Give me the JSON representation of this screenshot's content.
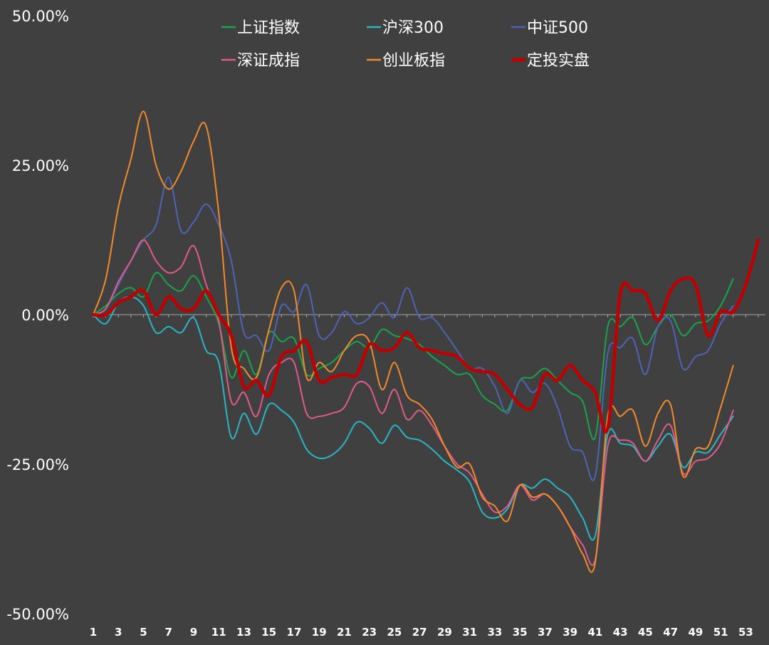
{
  "chart_data": {
    "type": "line",
    "x_ticks": [
      "1",
      "3",
      "5",
      "7",
      "9",
      "11",
      "13",
      "15",
      "17",
      "19",
      "21",
      "23",
      "25",
      "27",
      "29",
      "31",
      "33",
      "35",
      "37",
      "39",
      "41",
      "43",
      "45",
      "47",
      "49",
      "51",
      "53"
    ],
    "y_ticks": [
      {
        "value": 50,
        "label": "50.00%"
      },
      {
        "value": 25,
        "label": "25.00%"
      },
      {
        "value": 0,
        "label": "0.00%"
      },
      {
        "value": -25,
        "label": "-25.00%"
      },
      {
        "value": -50,
        "label": "-50.00%"
      }
    ],
    "ylim": [
      -50,
      50
    ],
    "xlim": [
      1,
      54
    ],
    "grid": false,
    "legend_position": "top",
    "zero_line_color": "#a6a6a6",
    "series": [
      {
        "name": "上证指数",
        "color": "#1aa34a",
        "width": 2,
        "values": [
          0,
          1.5,
          3.5,
          4.5,
          3,
          7,
          5,
          4,
          6.5,
          3,
          -1.5,
          -10.5,
          -6,
          -10,
          -3,
          -4.5,
          -4,
          -10,
          -9,
          -8,
          -6,
          -4.5,
          -5.5,
          -2.5,
          -3.5,
          -4,
          -5,
          -7,
          -8.5,
          -10,
          -10,
          -13.5,
          -15,
          -16,
          -11,
          -10.5,
          -9,
          -11,
          -13,
          -14.5,
          -20.5,
          -2,
          -2,
          -0.5,
          -5,
          -2,
          0,
          -3.5,
          -1.5,
          -1,
          1.5,
          6
        ]
      },
      {
        "name": "沪深300",
        "color": "#2ab5c5",
        "width": 2,
        "values": [
          0,
          -1.5,
          2,
          3,
          1.5,
          -3,
          -2,
          -3,
          -0.5,
          -6,
          -8,
          -20.5,
          -16.5,
          -20,
          -15,
          -16,
          -18,
          -22.5,
          -24,
          -23.5,
          -21.5,
          -18,
          -19,
          -21.5,
          -18.5,
          -20.5,
          -21,
          -22.5,
          -24.5,
          -26,
          -28,
          -33,
          -34,
          -32.5,
          -28.5,
          -29,
          -27.5,
          -29,
          -30.5,
          -34,
          -37,
          -20,
          -21.5,
          -22,
          -24.5,
          -22,
          -20,
          -25.5,
          -23,
          -23,
          -20,
          -17
        ]
      },
      {
        "name": "中证500",
        "color": "#4e63b5",
        "width": 2,
        "values": [
          0,
          1,
          5,
          9,
          12.5,
          15,
          23,
          14,
          15.5,
          18.5,
          15,
          9,
          -3,
          -3.5,
          -6,
          1.5,
          0.5,
          5,
          -3.5,
          -3,
          0.5,
          -1.5,
          -0.5,
          2,
          -0.5,
          4.5,
          -0.5,
          -0.5,
          -3,
          -6,
          -9,
          -9,
          -12,
          -16.5,
          -11,
          -13,
          -11.5,
          -15.5,
          -22,
          -23,
          -27,
          -6.5,
          -5.5,
          -4,
          -10,
          -2,
          -1,
          -9,
          -7,
          -6,
          -1.5,
          1.5
        ]
      },
      {
        "name": "深证成指",
        "color": "#e05a8a",
        "width": 2,
        "values": [
          0,
          1,
          5.5,
          9,
          12.5,
          9,
          7,
          8,
          11.5,
          5,
          -1,
          -14.5,
          -13,
          -17,
          -10,
          -8,
          -8,
          -16.5,
          -17,
          -16.5,
          -15.5,
          -11.5,
          -12,
          -16.5,
          -12.5,
          -17.5,
          -16,
          -18.5,
          -22,
          -25,
          -26.5,
          -30,
          -33,
          -32,
          -28.5,
          -31,
          -30,
          -32,
          -35.5,
          -38.5,
          -41,
          -22,
          -21,
          -21.5,
          -24.5,
          -21,
          -18.5,
          -26.5,
          -24.5,
          -24,
          -21.5,
          -16
        ]
      },
      {
        "name": "创业板指",
        "color": "#f08a2c",
        "width": 2,
        "values": [
          0,
          6,
          18,
          26,
          34,
          25,
          21,
          24,
          29,
          31.5,
          17,
          -5.5,
          -9,
          -10.5,
          -2.5,
          4.5,
          4,
          -10.5,
          -8,
          -9.5,
          -6,
          -3.5,
          -4.5,
          -12.5,
          -8,
          -13.5,
          -15,
          -17.5,
          -22,
          -25.5,
          -25,
          -30.5,
          -32,
          -34.5,
          -28.5,
          -30.5,
          -30,
          -32,
          -35.5,
          -40,
          -41.5,
          -17,
          -17,
          -16,
          -22,
          -16.5,
          -15,
          -27,
          -22.5,
          -22,
          -15.5,
          -8.5
        ]
      },
      {
        "name": "定投实盘",
        "color": "#c00000",
        "width": 4.5,
        "values": [
          0,
          0,
          2,
          3,
          4,
          0,
          3,
          1,
          1,
          4,
          0,
          -3.5,
          -12,
          -11,
          -13.5,
          -7,
          -6,
          -4.5,
          -11,
          -10.5,
          -10,
          -10,
          -5,
          -6,
          -5.5,
          -3,
          -5.5,
          -6,
          -6.5,
          -7,
          -9,
          -9.5,
          -10,
          -12.5,
          -15,
          -15.5,
          -10,
          -11,
          -8.5,
          -11,
          -13,
          -19,
          3.5,
          4,
          3.5,
          -1,
          4,
          6,
          5,
          -3.5,
          0.5,
          0.5,
          5,
          12.5
        ]
      }
    ]
  }
}
